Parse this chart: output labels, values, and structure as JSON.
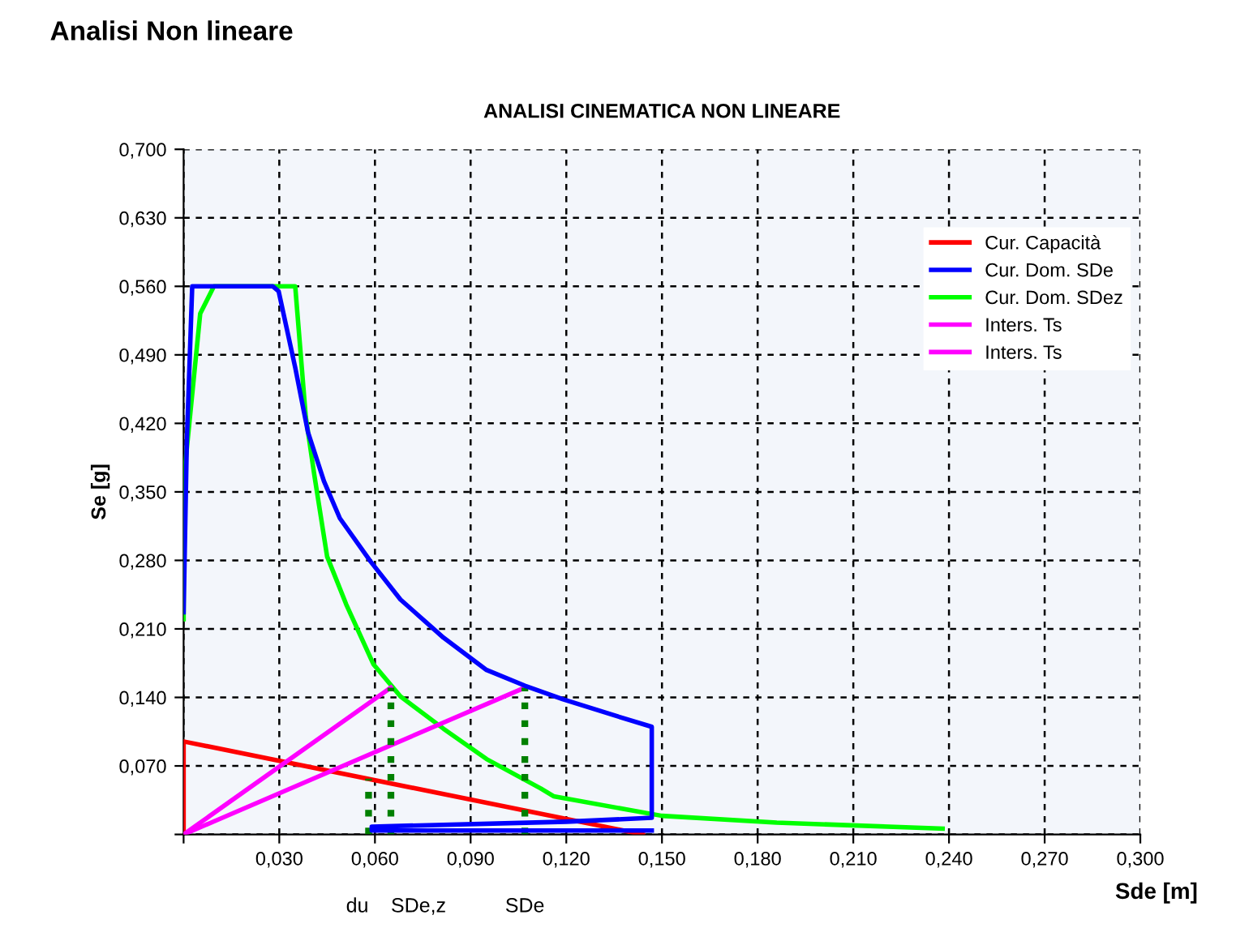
{
  "chart_data": {
    "type": "line",
    "title": "Analisi Non lineare",
    "subtitle": "ANALISI CINEMATICA NON LINEARE",
    "xlabel": "Sde [m]",
    "ylabel": "Se [g]",
    "xlim": [
      0,
      0.3
    ],
    "ylim": [
      0,
      0.7
    ],
    "xticks": [
      {
        "value": 0,
        "label": null
      },
      {
        "value": 0.03,
        "label": "0,030"
      },
      {
        "value": 0.06,
        "label": "0,060"
      },
      {
        "value": 0.09,
        "label": "0,090"
      },
      {
        "value": 0.12,
        "label": "0,120"
      },
      {
        "value": 0.15,
        "label": "0,150"
      },
      {
        "value": 0.18,
        "label": "0,180"
      },
      {
        "value": 0.21,
        "label": "0,210"
      },
      {
        "value": 0.24,
        "label": "0,240"
      },
      {
        "value": 0.27,
        "label": "0,270"
      },
      {
        "value": 0.3,
        "label": "0,300"
      }
    ],
    "yticks": [
      {
        "value": 0,
        "label": null
      },
      {
        "value": 0.07,
        "label": "0,070"
      },
      {
        "value": 0.14,
        "label": "0,140"
      },
      {
        "value": 0.21,
        "label": "0,210"
      },
      {
        "value": 0.28,
        "label": "0,280"
      },
      {
        "value": 0.35,
        "label": "0,350"
      },
      {
        "value": 0.42,
        "label": "0,420"
      },
      {
        "value": 0.49,
        "label": "0,490"
      },
      {
        "value": 0.56,
        "label": "0,560"
      },
      {
        "value": 0.63,
        "label": "0,630"
      },
      {
        "value": 0.7,
        "label": "0,700"
      }
    ],
    "grid": true,
    "legend": "top right",
    "marker": "none",
    "annotations": [
      "du",
      "SDe,z",
      "SDe"
    ],
    "series": [
      {
        "name": "Cur. Capacità",
        "color": "#ff0000",
        "x": [
          0,
          0,
          0.144
        ],
        "values": [
          0,
          0.095,
          0
        ]
      },
      {
        "name": "Cur. Dom. SDe",
        "color": "#0000ff",
        "x": [
          0,
          0.001,
          0.0027,
          0.028,
          0.0298,
          0.035,
          0.039,
          0.044,
          0.049,
          0.0586,
          0.068,
          0.0815,
          0.095,
          0.107,
          0.119,
          0.1357,
          0.1468,
          0.1468,
          0.12,
          0.059,
          0.059,
          0.1468
        ],
        "values": [
          0.227,
          0.4,
          0.56,
          0.56,
          0.555,
          0.477,
          0.411,
          0.361,
          0.323,
          0.279,
          0.24,
          0.201,
          0.168,
          0.152,
          0.138,
          0.121,
          0.11,
          0.017,
          0.013,
          0.008,
          0.004,
          0.004
        ]
      },
      {
        "name": "Cur. Dom. SDez",
        "color": "#00ff00",
        "x": [
          0,
          0,
          0.0052,
          0.0095,
          0.035,
          0.0383,
          0.041,
          0.045,
          0.051,
          0.0595,
          0.068,
          0.0815,
          0.095,
          0.112,
          0.116,
          0.15,
          0.186,
          0.238
        ],
        "values": [
          0.22,
          0.361,
          0.532,
          0.56,
          0.56,
          0.427,
          0.367,
          0.284,
          0.235,
          0.174,
          0.141,
          0.108,
          0.077,
          0.047,
          0.039,
          0.019,
          0.012,
          0.006
        ]
      },
      {
        "name": "Inters. Ts",
        "color": "#ff00ff",
        "x": [
          0,
          0.065
        ],
        "values": [
          0,
          0.15
        ]
      },
      {
        "name": "Inters. Ts",
        "color": "#ff00ff",
        "x": [
          0,
          0.107
        ],
        "values": [
          0,
          0.15
        ]
      },
      {
        "color": "#008000",
        "line_style": "dotted",
        "x": [
          0.058,
          0.058
        ],
        "values": [
          0,
          0.057
        ]
      },
      {
        "color": "#008000",
        "line_style": "dotted",
        "x": [
          0.065,
          0.065
        ],
        "values": [
          0,
          0.15
        ]
      },
      {
        "color": "#008000",
        "line_style": "dotted",
        "x": [
          0.107,
          0.107
        ],
        "values": [
          0,
          0.15
        ]
      }
    ]
  }
}
